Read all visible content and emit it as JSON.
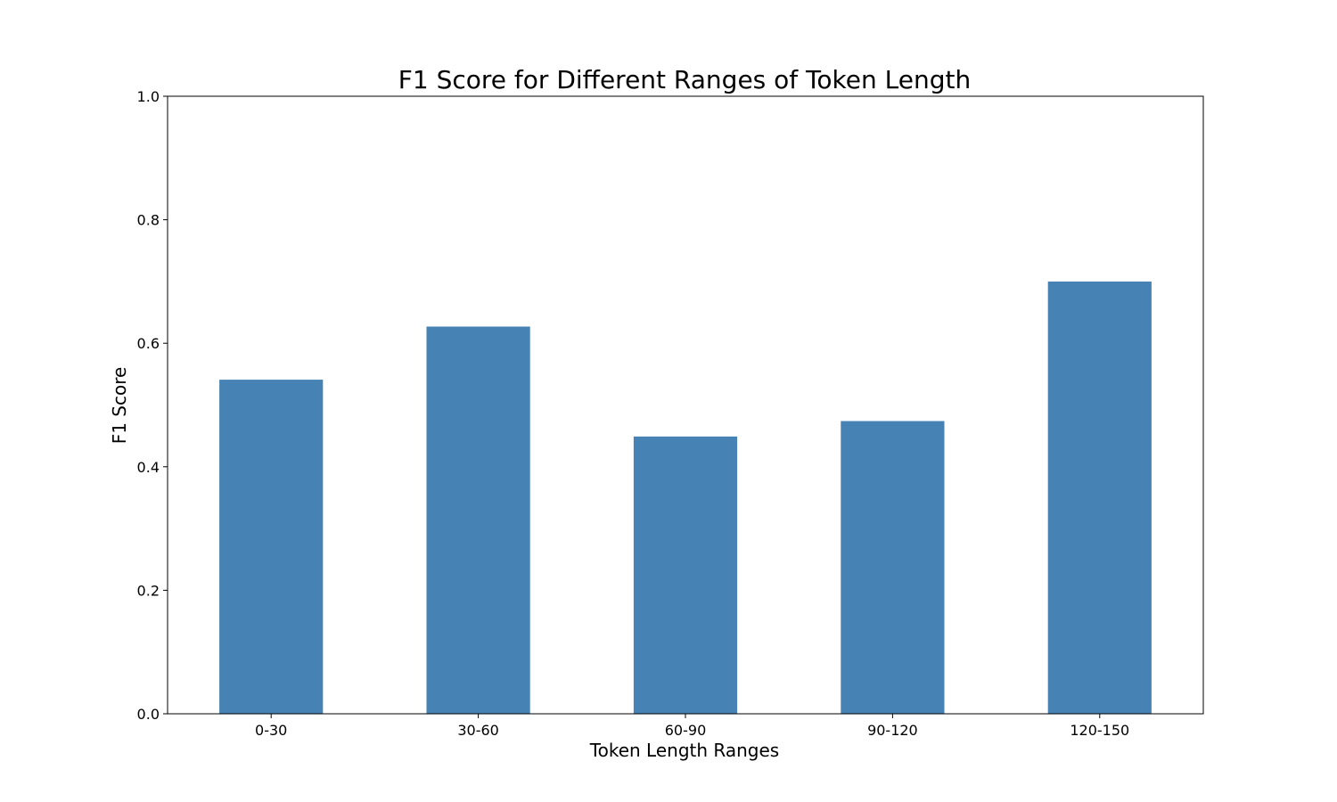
{
  "chart_data": {
    "type": "bar",
    "title": "F1 Score for Different Ranges of Token Length",
    "xlabel": "Token Length Ranges",
    "ylabel": "F1 Score",
    "categories": [
      "0-30",
      "30-60",
      "60-90",
      "90-120",
      "120-150"
    ],
    "values": [
      0.541,
      0.627,
      0.449,
      0.474,
      0.7
    ],
    "ylim": [
      0,
      1.0
    ],
    "yticks": [
      "0.0",
      "0.2",
      "0.4",
      "0.6",
      "0.8",
      "1.0"
    ],
    "bar_color": "#4682b4",
    "grid": false,
    "legend": "none"
  }
}
